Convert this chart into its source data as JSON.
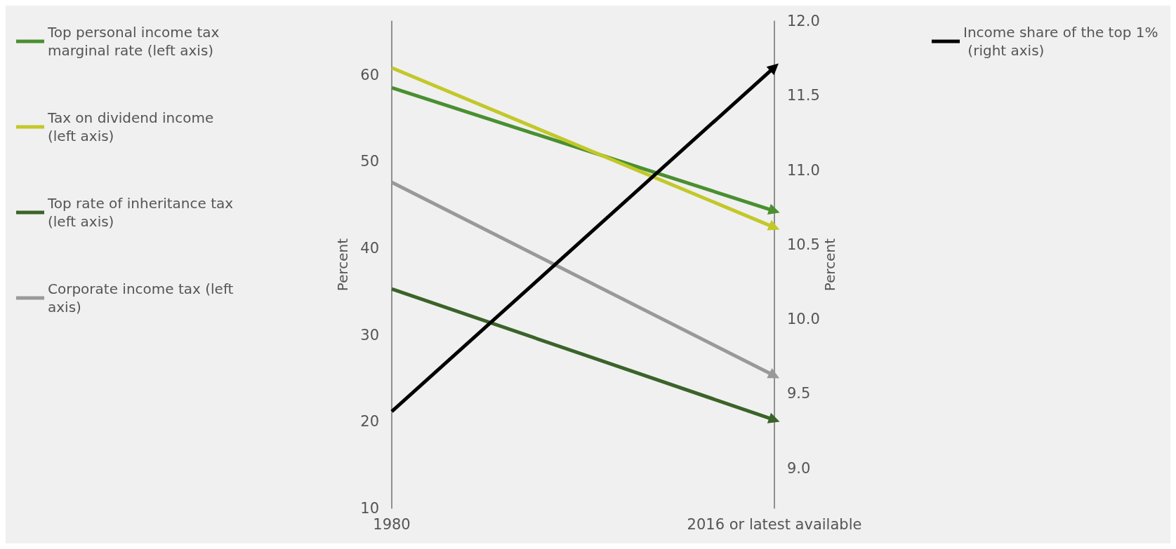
{
  "chart_data": {
    "type": "line",
    "categories": [
      "1980",
      "2016 or latest available"
    ],
    "ylabel": "Percent",
    "y2label": "Percent",
    "ylim": [
      10,
      66.2
    ],
    "yticks": [
      10,
      20,
      30,
      40,
      50,
      60
    ],
    "y2lim": [
      8.73,
      12
    ],
    "y2ticks": [
      {
        "value": 9,
        "label": "9.0"
      },
      9.5,
      {
        "value": 10,
        "label": "10.0"
      },
      10.5,
      {
        "value": 11,
        "label": "11.0"
      },
      11.5,
      {
        "value": 12,
        "label": "12.0"
      }
    ],
    "grid": "x",
    "legend": "left",
    "marker": "triangle",
    "line_style": "solid",
    "series": [
      {
        "name": "Top personal income tax marginal rate (left axis)",
        "color": "#4a8f30",
        "values": [
          58.5,
          44.3
        ]
      },
      {
        "name": "Tax on dividend income (left axis)",
        "color": "#c2c829",
        "values": [
          60.8,
          42.4
        ]
      },
      {
        "name": "Top rate of inheritance tax (left axis)",
        "color": "#3b6329",
        "values": [
          35.3,
          20.2
        ]
      },
      {
        "name": "Corporate income tax (left axis)",
        "color": "#999999",
        "values": [
          47.6,
          25.3
        ]
      },
      {
        "name": "Income share of the top 1% (right axis)",
        "color": "#000000",
        "values": [
          9.38,
          11.69
        ],
        "axis": "y2"
      }
    ]
  }
}
